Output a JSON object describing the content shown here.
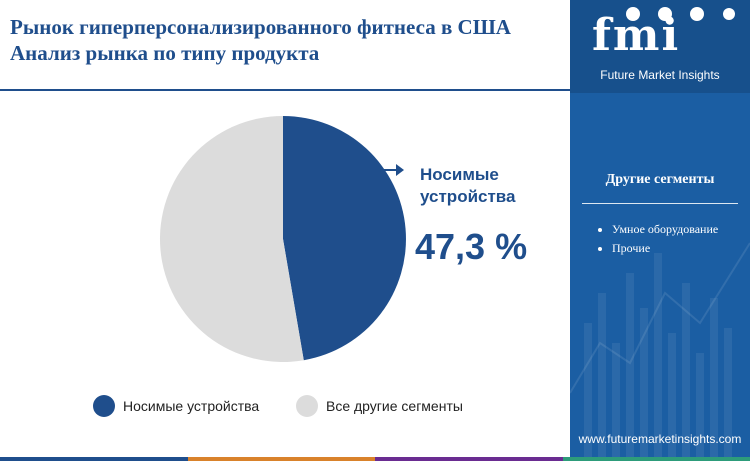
{
  "header": {
    "title_line1": "Рынок гиперперсонализированного фитнеса в США",
    "title_line2": "Анализ рынка по типу продукта"
  },
  "chart_data": {
    "type": "pie",
    "slices": [
      {
        "label": "Носимые устройства",
        "value": 47.3,
        "color": "#1f4e8c"
      },
      {
        "label": "Все другие сегменты",
        "value": 52.7,
        "color": "#dcdcdc"
      }
    ],
    "highlight": {
      "label_line1": "Носимые",
      "label_line2": "устройства",
      "value_text": "47,3 %"
    }
  },
  "legend": [
    {
      "label": "Носимые устройства",
      "color": "#1f4e8c"
    },
    {
      "label": "Все другие сегменты",
      "color": "#dcdcdc"
    }
  ],
  "brand": {
    "logo": "fmi",
    "name": "Future Market Insights",
    "website": "www.futuremarketinsights.com"
  },
  "sidebar": {
    "title": "Другие сегменты",
    "items": [
      "Умное оборудование",
      "Прочие"
    ]
  },
  "colors": {
    "accent": "#1f4e8c",
    "panel": "#1b5ea3",
    "other": "#dcdcdc"
  }
}
